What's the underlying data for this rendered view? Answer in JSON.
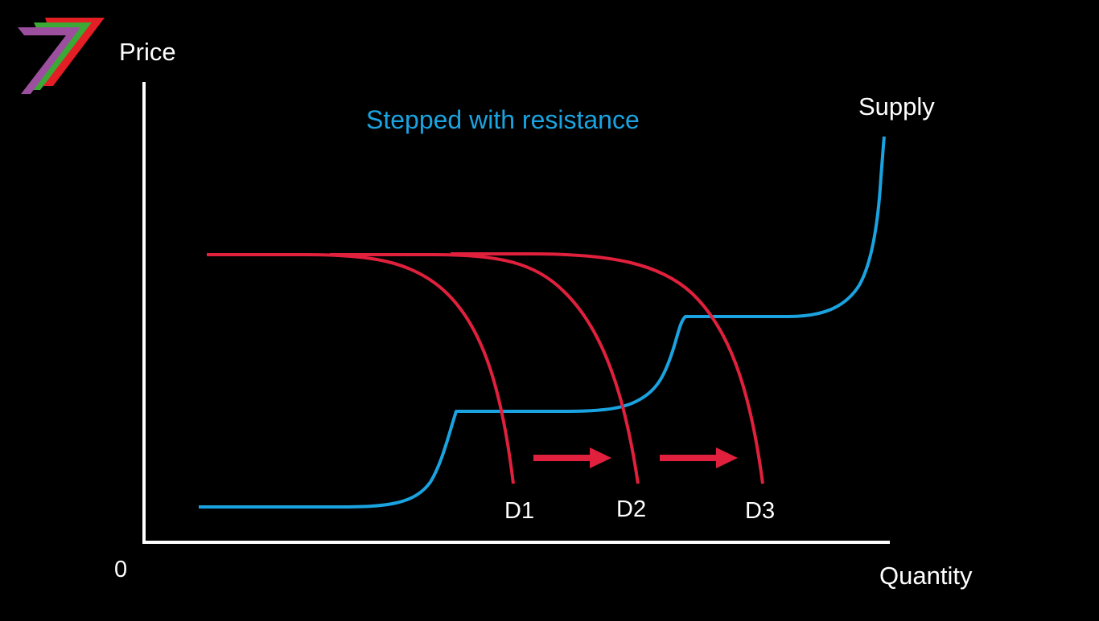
{
  "diagram": {
    "title": "Stepped with resistance",
    "axis": {
      "y_label": "Price",
      "x_label": "Quantity",
      "origin_label": "0"
    },
    "supply": {
      "label": "Supply",
      "color": "#1aa3e0"
    },
    "demand": {
      "color": "#e0203c",
      "curves": [
        {
          "label": "D1"
        },
        {
          "label": "D2"
        },
        {
          "label": "D3"
        }
      ]
    },
    "shift_arrows": {
      "color": "#e0203c",
      "count": 2
    },
    "logo": {
      "name": "seven-logo",
      "colors": [
        "#e31e24",
        "#3aa935",
        "#9b4f9e"
      ]
    }
  }
}
